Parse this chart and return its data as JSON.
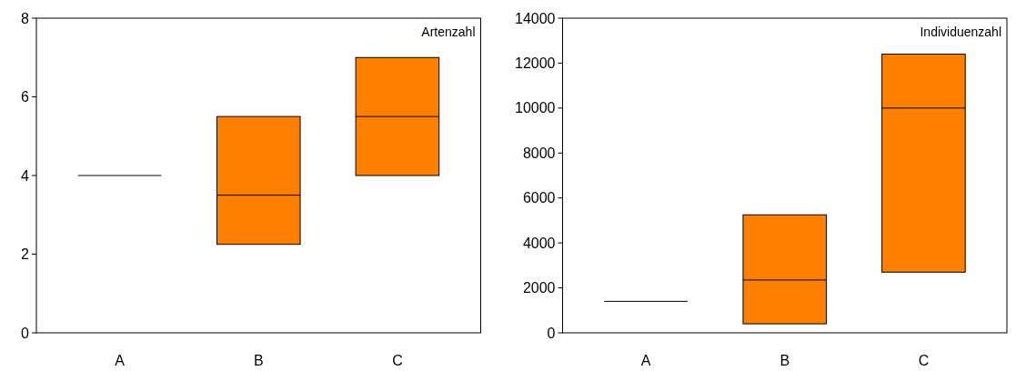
{
  "chart_data": [
    {
      "type": "box",
      "title": "Artenzahl",
      "categories": [
        "A",
        "B",
        "C"
      ],
      "ylim": [
        0,
        8
      ],
      "yticks": [
        0,
        2,
        4,
        6,
        8
      ],
      "grid": false,
      "series": [
        {
          "colors": [
            "#000000",
            "#ff8000",
            "#ff8000"
          ],
          "boxes": [
            {
              "low": 4,
              "q1": 4,
              "median": 4,
              "q3": 4,
              "high": 4
            },
            {
              "low": 2.25,
              "q1": 2.25,
              "median": 3.5,
              "q3": 5.5,
              "high": 5.5
            },
            {
              "low": 4,
              "q1": 4,
              "median": 5.5,
              "q3": 7,
              "high": 7
            }
          ]
        }
      ]
    },
    {
      "type": "box",
      "title": "Individuenzahl",
      "categories": [
        "A",
        "B",
        "C"
      ],
      "ylim": [
        0,
        14000
      ],
      "yticks": [
        0,
        2000,
        4000,
        6000,
        8000,
        10000,
        12000,
        14000
      ],
      "grid": false,
      "series": [
        {
          "colors": [
            "#000000",
            "#ff8000",
            "#ff8000"
          ],
          "boxes": [
            {
              "low": 1400,
              "q1": 1400,
              "median": 1400,
              "q3": 1400,
              "high": 1400
            },
            {
              "low": 400,
              "q1": 400,
              "median": 2350,
              "q3": 5250,
              "high": 5250
            },
            {
              "low": 2700,
              "q1": 2700,
              "median": 10000,
              "q3": 12400,
              "high": 12400
            }
          ]
        }
      ]
    }
  ]
}
